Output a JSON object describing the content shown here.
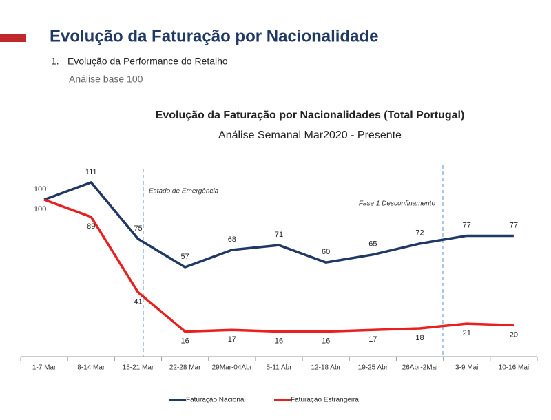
{
  "header": {
    "title": "Evolução da Faturação por Nacionalidade",
    "section_number": "1.",
    "section": "Evolução da Performance do Retalho",
    "note": "Análise base 100"
  },
  "chart_data": {
    "type": "line",
    "title": "Evolução da Faturação por Nacionalidades (Total Portugal)",
    "subtitle": "Análise Semanal Mar2020 - Presente",
    "categories": [
      "1-7 Mar",
      "8-14 Mar",
      "15-21 Mar",
      "22-28 Mar",
      "29Mar-04Abr",
      "5-11 Abr",
      "12-18 Abr",
      "19-25 Abr",
      "26Abr-2Mai",
      "3-9 Mai",
      "10-16 Mai"
    ],
    "series": [
      {
        "name": "Faturação Nacional",
        "color": "#1f3864",
        "values": [
          100,
          111,
          75,
          57,
          68,
          71,
          60,
          65,
          72,
          77,
          77
        ]
      },
      {
        "name": "Faturação Estrangeira",
        "color": "#e8201f",
        "values": [
          100,
          89,
          41,
          16,
          17,
          16,
          16,
          17,
          18,
          21,
          20
        ]
      }
    ],
    "annotations": [
      "Estado de Emergência",
      "Fase 1 Desconfinamento"
    ],
    "legend": "bottom"
  }
}
